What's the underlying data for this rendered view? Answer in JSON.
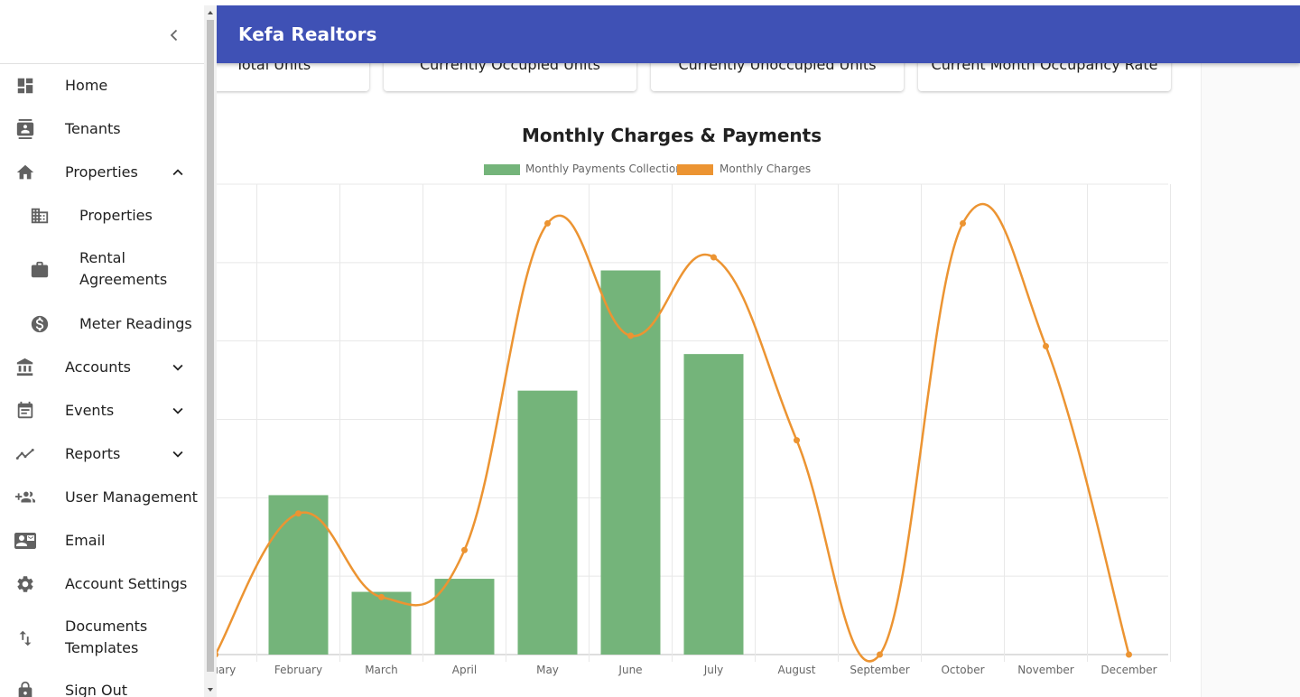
{
  "app": {
    "title": "Kefa Realtors"
  },
  "cards": [
    {
      "label": "Total Units"
    },
    {
      "label": "Currently Occupied Units"
    },
    {
      "label": "Currently Unoccupied Units"
    },
    {
      "label": "Current Month Occupancy Rate"
    }
  ],
  "nav": {
    "items": [
      {
        "label": "Home",
        "icon": "dashboard-icon"
      },
      {
        "label": "Tenants",
        "icon": "contacts-icon"
      },
      {
        "label": "Properties",
        "icon": "home-icon",
        "expanded": true
      },
      {
        "label": "Properties",
        "icon": "building-icon",
        "sub": true
      },
      {
        "label": "Rental Agreements",
        "icon": "briefcase-icon",
        "sub": true
      },
      {
        "label": "Meter Readings",
        "icon": "dollar-icon",
        "sub": true
      },
      {
        "label": "Accounts",
        "icon": "bank-icon"
      },
      {
        "label": "Events",
        "icon": "calendar-icon"
      },
      {
        "label": "Reports",
        "icon": "trending-icon"
      },
      {
        "label": "User Management",
        "icon": "group-add-icon"
      },
      {
        "label": "Email",
        "icon": "contact-mail-icon"
      },
      {
        "label": "Account Settings",
        "icon": "gear-icon"
      },
      {
        "label": "Documents Templates",
        "icon": "swap-vert-icon"
      },
      {
        "label": "Sign Out",
        "icon": "lock-icon"
      }
    ]
  },
  "colors": {
    "appbar": "#3f51b5",
    "payments": "#74b47a",
    "charges": "#ec9432"
  },
  "chart_data": {
    "type": "bar",
    "title": "Monthly Charges & Payments",
    "categories": [
      "January",
      "February",
      "March",
      "April",
      "May",
      "June",
      "July",
      "August",
      "September",
      "October",
      "November",
      "December"
    ],
    "series": [
      {
        "name": "Monthly Payments Collection",
        "type": "bar",
        "values": [
          0,
          30500,
          12000,
          14500,
          50500,
          73500,
          57500,
          0,
          0,
          0,
          0,
          0
        ]
      },
      {
        "name": "Monthly Charges",
        "type": "line",
        "values": [
          0,
          27000,
          11000,
          20000,
          82500,
          61000,
          76000,
          41000,
          0,
          82500,
          59000,
          0
        ]
      }
    ],
    "ylim": [
      0,
      90000
    ],
    "grid": true,
    "legend": "top"
  }
}
